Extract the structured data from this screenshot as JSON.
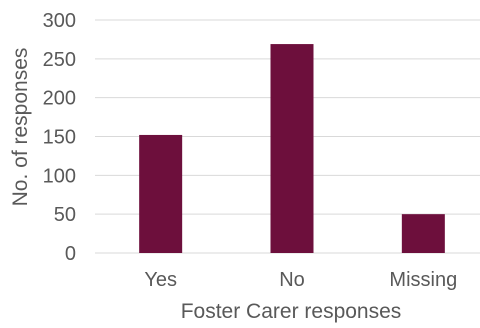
{
  "chart_data": {
    "type": "bar",
    "categories": [
      "Yes",
      "No",
      "Missing"
    ],
    "values": [
      152,
      269,
      50
    ],
    "xlabel": "Foster Carer responses",
    "ylabel": "No. of responses",
    "ylim": [
      0,
      300
    ],
    "yticks": [
      0,
      50,
      100,
      150,
      200,
      250,
      300
    ],
    "grid": true,
    "legend": "none",
    "bar_color": "#6d0f3c",
    "grid_color": "#d9d9d9",
    "text_color": "#595959"
  }
}
